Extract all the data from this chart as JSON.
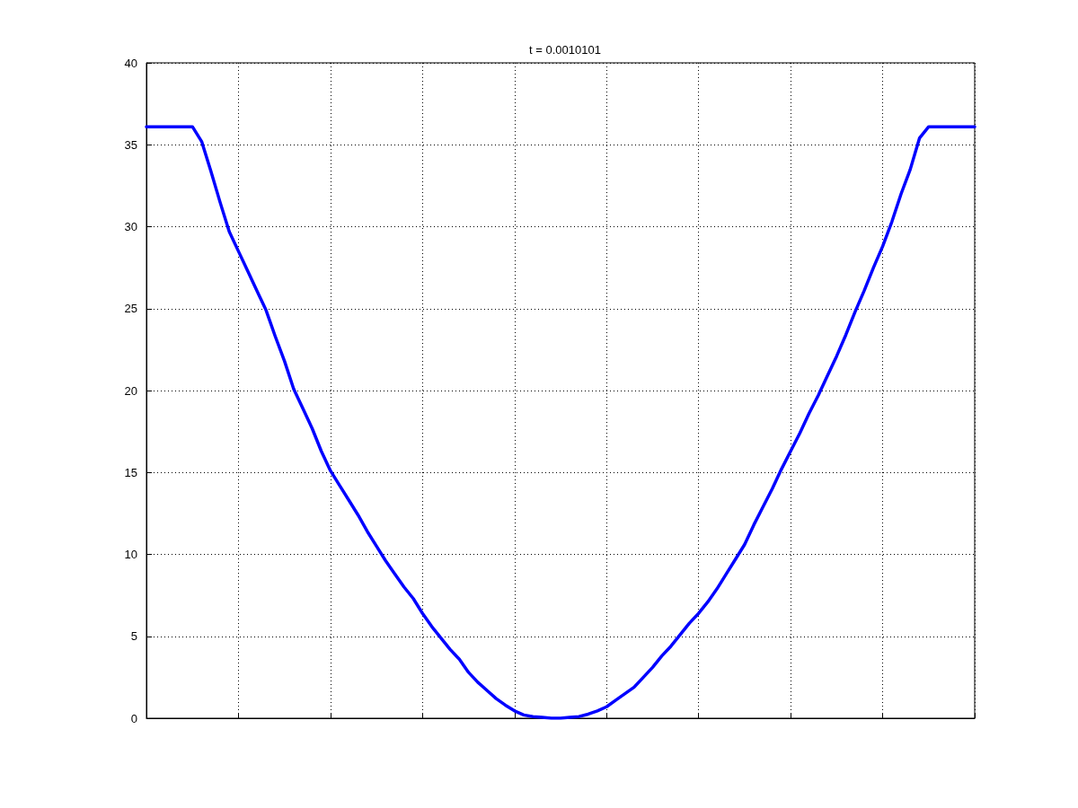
{
  "chart_data": {
    "type": "line",
    "title": "t = 0.0010101",
    "categories": [
      null,
      null,
      null,
      null,
      null,
      null,
      null,
      null,
      null,
      null,
      null,
      null,
      null,
      null,
      null,
      null,
      null,
      null,
      null,
      null,
      null,
      null,
      null,
      null,
      null,
      null,
      null,
      null,
      null,
      null,
      null,
      null,
      null,
      null,
      null,
      null,
      null,
      null,
      null,
      null,
      null,
      null,
      null,
      null,
      null,
      null,
      null,
      null,
      null,
      null,
      null,
      null,
      null,
      null,
      null,
      null,
      null,
      null,
      null,
      null,
      null,
      null,
      null,
      null,
      null,
      null,
      null,
      null,
      null,
      null,
      null,
      null,
      null,
      null,
      null,
      null,
      null,
      null,
      null,
      null,
      null,
      null,
      null,
      null,
      null,
      null,
      null,
      null,
      null,
      null,
      null
    ],
    "series": [
      {
        "color": "#0000ff",
        "values": [
          36.1,
          36.1,
          36.1,
          36.1,
          36.1,
          36.1,
          35.2,
          33.4,
          31.5,
          29.7,
          28.5,
          27.3,
          26.1,
          24.9,
          23.3,
          21.8,
          20.1,
          18.9,
          17.7,
          16.3,
          15.1,
          14.2,
          13.3,
          12.4,
          11.4,
          10.5,
          9.6,
          8.8,
          8.0,
          7.3,
          6.4,
          5.6,
          4.9,
          4.2,
          3.6,
          2.8,
          2.2,
          1.7,
          1.2,
          0.8,
          0.45,
          0.2,
          0.1,
          0.05,
          0,
          0,
          0.05,
          0.1,
          0.25,
          0.45,
          0.7,
          1.1,
          1.5,
          1.9,
          2.5,
          3.1,
          3.8,
          4.4,
          5.1,
          5.8,
          6.4,
          7.1,
          7.9,
          8.8,
          9.7,
          10.6,
          11.8,
          12.9,
          14.0,
          15.2,
          16.3,
          17.4,
          18.6,
          19.7,
          20.9,
          22.1,
          23.4,
          24.8,
          26.1,
          27.5,
          28.8,
          30.3,
          32.0,
          33.5,
          35.4,
          36.1,
          36.1,
          36.1,
          36.1,
          36.1,
          36.1
        ]
      }
    ],
    "ylim": [
      0,
      40
    ],
    "yticks": [
      0,
      5,
      10,
      15,
      20,
      25,
      30,
      35,
      40
    ],
    "grid": true,
    "tick_labels": "y",
    "marker": "none",
    "line_style": "solid"
  }
}
